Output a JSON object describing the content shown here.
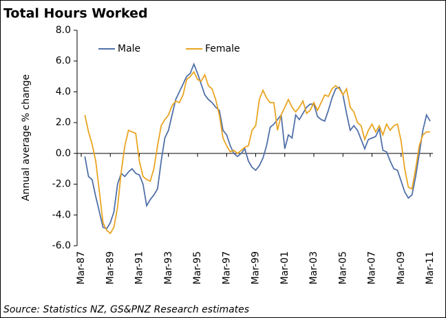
{
  "chart_data": {
    "type": "line",
    "title": "Total Hours Worked",
    "y_label": "Annual average % change",
    "source": "Source: Statistics NZ, GS&PNZ Research estimates",
    "categories": [
      "Mar-87",
      null,
      null,
      null,
      null,
      null,
      null,
      null,
      "Mar-89",
      null,
      null,
      null,
      null,
      null,
      null,
      null,
      "Mar-91",
      null,
      null,
      null,
      null,
      null,
      null,
      null,
      "Mar-93",
      null,
      null,
      null,
      null,
      null,
      null,
      null,
      "Mar-95",
      null,
      null,
      null,
      null,
      null,
      null,
      null,
      "Mar-97",
      null,
      null,
      null,
      null,
      null,
      null,
      null,
      "Mar-99",
      null,
      null,
      null,
      null,
      null,
      null,
      null,
      "Mar-01",
      null,
      null,
      null,
      null,
      null,
      null,
      null,
      "Mar-03",
      null,
      null,
      null,
      null,
      null,
      null,
      null,
      "Mar-05",
      null,
      null,
      null,
      null,
      null,
      null,
      null,
      "Mar-07",
      null,
      null,
      null,
      null,
      null,
      null,
      null,
      "Mar-09",
      null,
      null,
      null,
      null,
      null,
      null,
      null,
      "Mar-11"
    ],
    "series": [
      {
        "name": "Male",
        "color": "#4f6fa8",
        "values": [
          null,
          -0.2,
          -1.5,
          -1.7,
          -2.8,
          -3.8,
          -4.8,
          -4.9,
          -4.5,
          -3.8,
          -2.0,
          -1.3,
          -1.5,
          -1.2,
          -1.0,
          -1.3,
          -1.4,
          -2.0,
          -3.4,
          -3.0,
          -2.7,
          -2.3,
          -0.5,
          1.0,
          1.5,
          2.5,
          3.5,
          4.0,
          4.5,
          5.0,
          5.2,
          5.8,
          5.2,
          4.5,
          3.8,
          3.5,
          3.3,
          3.0,
          2.8,
          1.5,
          1.2,
          0.5,
          0.0,
          -0.2,
          0.0,
          0.3,
          -0.5,
          -0.9,
          -1.1,
          -0.8,
          -0.3,
          0.5,
          1.7,
          1.9,
          2.2,
          2.5,
          0.3,
          1.2,
          1.0,
          2.5,
          2.2,
          2.6,
          3.0,
          3.2,
          3.2,
          2.4,
          2.2,
          2.1,
          2.8,
          3.6,
          4.2,
          4.3,
          3.8,
          2.6,
          1.5,
          1.8,
          1.5,
          0.9,
          0.3,
          0.9,
          1.0,
          1.1,
          1.6,
          0.2,
          0.1,
          -0.5,
          -1.0,
          -1.1,
          -1.8,
          -2.5,
          -2.9,
          -2.7,
          -1.5,
          0.0,
          1.5,
          2.5,
          2.1
        ]
      },
      {
        "name": "Female",
        "color": "#e9a420",
        "values": [
          null,
          2.5,
          1.4,
          0.6,
          -0.5,
          -2.5,
          -4.5,
          -5.0,
          -5.2,
          -4.8,
          -3.5,
          -1.2,
          0.5,
          1.5,
          1.4,
          1.3,
          -0.5,
          -1.5,
          -1.7,
          -1.8,
          -1.0,
          0.5,
          1.8,
          2.2,
          2.5,
          3.1,
          3.4,
          3.3,
          3.8,
          4.8,
          5.0,
          5.3,
          4.8,
          4.7,
          5.1,
          4.4,
          4.2,
          3.5,
          2.5,
          1.0,
          0.5,
          0.1,
          0.2,
          0.0,
          0.2,
          0.4,
          0.5,
          1.5,
          1.8,
          3.5,
          4.1,
          3.6,
          3.3,
          3.3,
          1.5,
          2.5,
          3.0,
          3.5,
          3.0,
          2.7,
          3.0,
          3.4,
          2.6,
          2.8,
          3.3,
          2.8,
          3.3,
          3.8,
          3.7,
          4.2,
          4.4,
          4.2,
          3.8,
          4.2,
          3.0,
          2.7,
          2.0,
          1.8,
          0.9,
          1.5,
          1.9,
          1.4,
          1.8,
          1.2,
          1.9,
          1.5,
          1.8,
          1.9,
          0.8,
          -1.0,
          -2.2,
          -2.3,
          -1.0,
          0.5,
          1.2,
          1.4,
          1.4
        ]
      }
    ],
    "ylim": [
      -6,
      8
    ],
    "yticks": [
      {
        "value": -6,
        "label": "-6.0"
      },
      {
        "value": -4,
        "label": "-4.0"
      },
      {
        "value": -2,
        "label": "-2.0"
      },
      {
        "value": 0,
        "label": "0.0"
      },
      {
        "value": 2,
        "label": "2.0"
      },
      {
        "value": 4,
        "label": "4.0"
      },
      {
        "value": 6,
        "label": "6.0"
      },
      {
        "value": 8,
        "label": "8.0"
      }
    ],
    "legend": "top-left"
  }
}
